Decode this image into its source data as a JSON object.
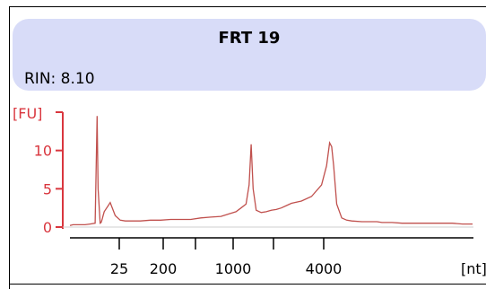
{
  "header": {
    "title": "FRT 19",
    "rin": "RIN: 8.10"
  },
  "colors": {
    "trace": "#c0504d",
    "axis_y": "#d9363e",
    "axis_x": "#000000",
    "header_bg": "#d8dcf8"
  },
  "chart_data": {
    "type": "line",
    "title": "FRT 19",
    "ylabel": "[FU]",
    "xlabel": "[nt]",
    "ylim": [
      -1,
      16
    ],
    "y_ticks": [
      0,
      5,
      10
    ],
    "x_tick_labels": [
      "25",
      "200",
      "1000",
      "4000"
    ],
    "x_minor_ticks_unlabeled": 2,
    "grid": false,
    "series": [
      {
        "values_note": "",
        "x": [
          0,
          3,
          5,
          10,
          15,
          20,
          25,
          27,
          28,
          30,
          31,
          32,
          33,
          34,
          35,
          38,
          40,
          45,
          50,
          55,
          60,
          70,
          80,
          90,
          100,
          110,
          120,
          130,
          140,
          150,
          160,
          165,
          170,
          175,
          178,
          180,
          182,
          185,
          190,
          195,
          200,
          205,
          210,
          215,
          220,
          230,
          240,
          250,
          255,
          258,
          260,
          262,
          265,
          270,
          275,
          280,
          290,
          300,
          305,
          310,
          312,
          315,
          320,
          330,
          340,
          350,
          360,
          370,
          380,
          390,
          400
        ],
        "values": [
          0.2,
          0.3,
          0.3,
          0.3,
          0.3,
          0.4,
          0.5,
          14.5,
          5,
          0.5,
          0.6,
          1.0,
          1.5,
          2.0,
          2.2,
          2.8,
          3.2,
          1.5,
          0.9,
          0.8,
          0.8,
          0.8,
          0.9,
          0.9,
          1.0,
          1.0,
          1.0,
          1.2,
          1.3,
          1.4,
          1.8,
          2.0,
          2.5,
          3.0,
          5.5,
          10.8,
          5.0,
          2.2,
          1.9,
          2.0,
          2.2,
          2.3,
          2.5,
          2.8,
          3.1,
          3.4,
          4.0,
          5.5,
          8.0,
          11.0,
          10.5,
          8.0,
          3.0,
          1.2,
          0.9,
          0.8,
          0.7,
          0.7,
          0.7,
          0.6,
          0.6,
          0.6,
          0.6,
          0.5,
          0.5,
          0.5,
          0.5,
          0.5,
          0.5,
          0.4,
          0.4
        ]
      }
    ]
  }
}
